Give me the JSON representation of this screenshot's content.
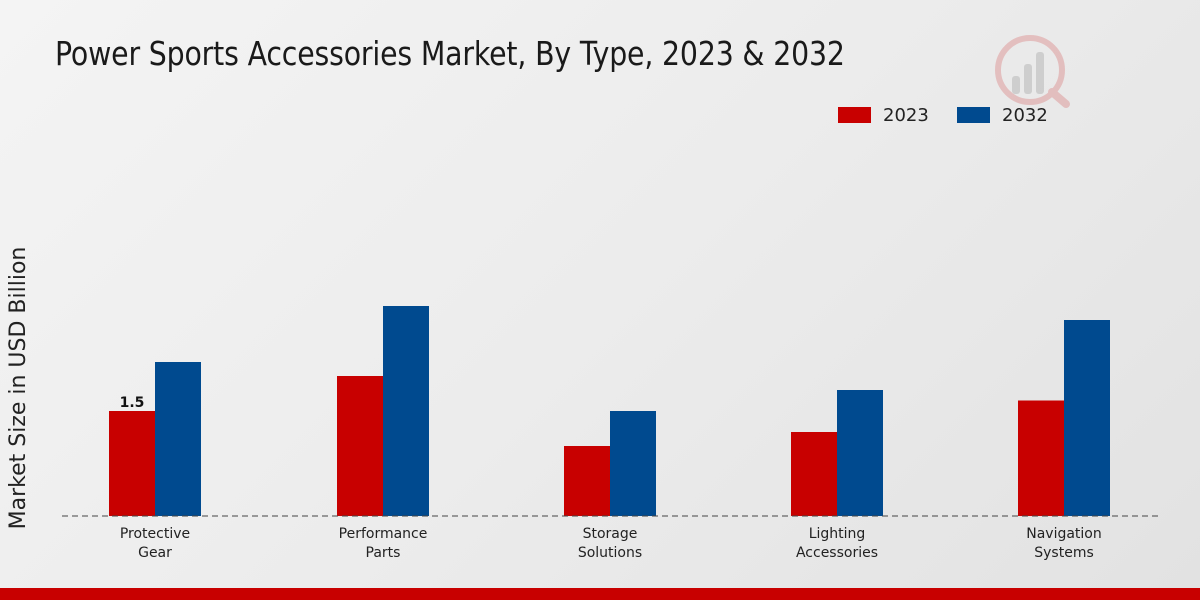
{
  "chart_data": {
    "type": "bar",
    "title": "Power Sports Accessories Market, By Type, 2023 & 2032",
    "xlabel": "",
    "ylabel": "Market Size in USD Billion",
    "categories": [
      [
        "Protective",
        "Gear"
      ],
      [
        "Performance",
        "Parts"
      ],
      [
        "Storage",
        "Solutions"
      ],
      [
        "Lighting",
        "Accessories"
      ],
      [
        "Navigation",
        "Systems"
      ]
    ],
    "series": [
      {
        "name": "2023",
        "color": "#c80000",
        "values": [
          1.5,
          2.0,
          1.0,
          1.2,
          1.65
        ]
      },
      {
        "name": "2032",
        "color": "#004a8f",
        "values": [
          2.2,
          3.0,
          1.5,
          1.8,
          2.8
        ]
      }
    ],
    "data_labels": [
      {
        "series": 0,
        "index": 0,
        "text": "1.5"
      }
    ],
    "ylim": [
      0,
      4.5
    ],
    "grid": false,
    "legend_position": "top-right"
  }
}
